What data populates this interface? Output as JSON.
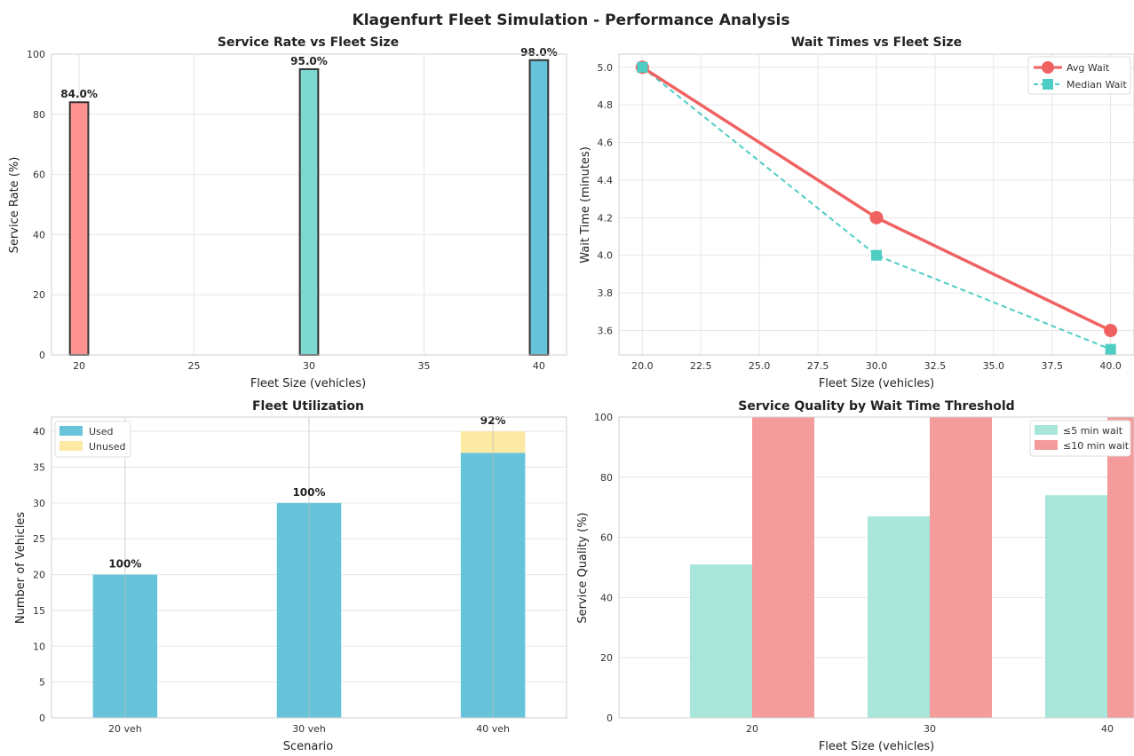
{
  "figure": {
    "title": "Klagenfurt Fleet Simulation - Performance Analysis"
  },
  "colors": {
    "red": "#ff9191",
    "teal": "#7dd9cf",
    "blue": "#66c3d9",
    "line_red": "#f06262",
    "line_teal": "#4ecdc4",
    "unused": "#fce9a3",
    "q5": "#a8e6d9",
    "q10": "#f49b9b",
    "edge": "#333333"
  },
  "chart_data": [
    {
      "id": "service-rate",
      "type": "bar",
      "title": "Service Rate vs Fleet Size",
      "xlabel": "Fleet Size (vehicles)",
      "ylabel": "Service Rate (%)",
      "x": [
        20,
        30,
        40
      ],
      "values": [
        84.0,
        95.0,
        98.0
      ],
      "labels": [
        "84.0%",
        "95.0%",
        "98.0%"
      ],
      "xlim": [
        18.8,
        41.2
      ],
      "ylim": [
        0,
        100
      ],
      "xticks": [
        20,
        25,
        30,
        35,
        40
      ],
      "yticks": [
        0,
        20,
        40,
        60,
        80,
        100
      ],
      "bar_width": 0.8,
      "grid": true
    },
    {
      "id": "wait-times",
      "type": "line",
      "title": "Wait Times vs Fleet Size",
      "xlabel": "Fleet Size (vehicles)",
      "ylabel": "Wait Time (minutes)",
      "x": [
        20,
        30,
        40
      ],
      "xlim": [
        19.0,
        41.0
      ],
      "ylim": [
        3.47,
        5.07
      ],
      "xticks": [
        20.0,
        22.5,
        25.0,
        27.5,
        30.0,
        32.5,
        35.0,
        37.5,
        40.0
      ],
      "xtick_labels": [
        "20.0",
        "22.5",
        "25.0",
        "27.5",
        "30.0",
        "32.5",
        "35.0",
        "37.5",
        "40.0"
      ],
      "yticks": [
        3.6,
        3.8,
        4.0,
        4.2,
        4.4,
        4.6,
        4.8,
        5.0
      ],
      "ytick_labels": [
        "3.6",
        "3.8",
        "4.0",
        "4.2",
        "4.4",
        "4.6",
        "4.8",
        "5.0"
      ],
      "series": [
        {
          "name": "Avg Wait",
          "values": [
            5.0,
            4.2,
            3.6
          ],
          "marker": "circle",
          "style": "solid"
        },
        {
          "name": "Median Wait",
          "values": [
            5.0,
            4.0,
            3.5
          ],
          "marker": "square",
          "style": "dashed"
        }
      ],
      "legend": "top-right",
      "grid": true
    },
    {
      "id": "fleet-utilization",
      "type": "bar",
      "stacked": true,
      "title": "Fleet Utilization",
      "xlabel": "Scenario",
      "ylabel": "Number of Vehicles",
      "categories": [
        "20 veh",
        "30 veh",
        "40 veh"
      ],
      "series": [
        {
          "name": "Used",
          "values": [
            20,
            30,
            37
          ]
        },
        {
          "name": "Unused",
          "values": [
            0,
            0,
            3
          ]
        }
      ],
      "labels": [
        "100%",
        "100%",
        "92%"
      ],
      "ylim": [
        0,
        42
      ],
      "yticks": [
        0,
        5,
        10,
        15,
        20,
        25,
        30,
        35,
        40
      ],
      "legend": "top-left",
      "grid": true
    },
    {
      "id": "service-quality",
      "type": "bar",
      "title": "Service Quality by Wait Time Threshold",
      "xlabel": "Fleet Size (vehicles)",
      "ylabel": "Service Quality (%)",
      "categories": [
        "20",
        "30",
        "40"
      ],
      "series": [
        {
          "name": "≤5 min wait",
          "values": [
            51,
            67,
            74
          ]
        },
        {
          "name": "≤10 min wait",
          "values": [
            100,
            100,
            100
          ]
        }
      ],
      "ylim": [
        0,
        100
      ],
      "yticks": [
        0,
        20,
        40,
        60,
        80,
        100
      ],
      "legend": "top-right",
      "grid": true
    }
  ]
}
